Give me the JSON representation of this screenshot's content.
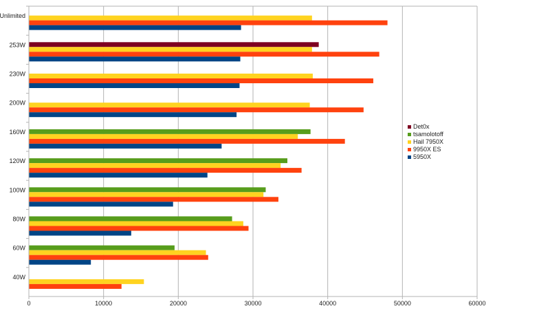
{
  "chart_data": {
    "type": "bar",
    "orientation": "horizontal",
    "categories": [
      "Unlimited",
      "253W",
      "230W",
      "200W",
      "160W",
      "120W",
      "100W",
      "80W",
      "60W",
      "40W"
    ],
    "series": [
      {
        "name": "Det0x",
        "color": "#7e0021",
        "values": [
          null,
          38800,
          null,
          null,
          null,
          null,
          null,
          null,
          null,
          null
        ]
      },
      {
        "name": "tsamolotoff",
        "color": "#579d1c",
        "values": [
          null,
          null,
          null,
          null,
          37700,
          34600,
          31700,
          27200,
          19500,
          null
        ]
      },
      {
        "name": "Hail 7950X",
        "color": "#ffd320",
        "values": [
          37900,
          37900,
          38000,
          37600,
          36000,
          33700,
          31400,
          28700,
          23700,
          15400
        ]
      },
      {
        "name": "9950X ES",
        "color": "#ff420e",
        "values": [
          48000,
          46900,
          46100,
          44800,
          42300,
          36500,
          33400,
          29400,
          24000,
          12400
        ]
      },
      {
        "name": "5950X",
        "color": "#004586",
        "values": [
          28400,
          28300,
          28200,
          27800,
          25800,
          23900,
          19300,
          13700,
          8300,
          null
        ]
      }
    ],
    "legend_order": [
      "Det0x",
      "tsamolotoff",
      "Hail 7950X",
      "9950X ES",
      "5950X"
    ],
    "x_ticks": [
      0,
      10000,
      20000,
      30000,
      40000,
      50000,
      60000
    ],
    "xlim": [
      0,
      60000
    ],
    "title": "",
    "xlabel": "",
    "ylabel": "",
    "grid": "vertical",
    "legend_position": "right"
  }
}
